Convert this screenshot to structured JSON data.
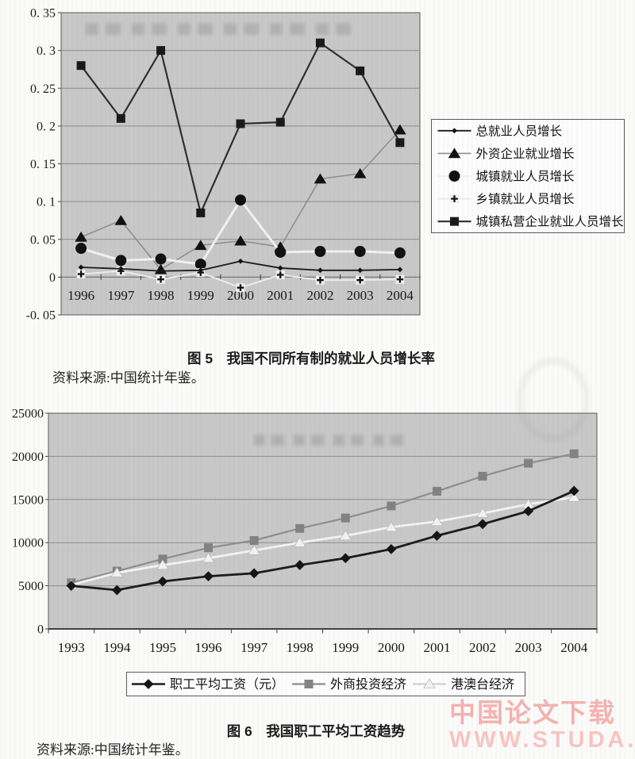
{
  "page": {
    "watermark": {
      "line1": "中国论文下载",
      "line2": "WWW.STUDA.",
      "color1": "#f5b3b0",
      "color2": "#f8c5c2"
    },
    "background": "#fbfbfa"
  },
  "figure5": {
    "caption": "图 5　我国不同所有制的就业人员增长率",
    "source": "资料来源:中国统计年鉴。"
  },
  "figure6": {
    "caption": "图 6　我国职工平均工资趋势",
    "source": "资料来源:中国统计年鉴。"
  },
  "chart_data": [
    {
      "type": "line",
      "title": "我国不同所有制的就业人员增长率",
      "xlabel": "",
      "ylabel": "",
      "categories": [
        "1996",
        "1997",
        "1998",
        "1999",
        "2000",
        "2001",
        "2002",
        "2003",
        "2004"
      ],
      "ylim": [
        -0.05,
        0.35
      ],
      "ytick_values": [
        0.35,
        0.3,
        0.25,
        0.2,
        0.15,
        0.1,
        0.05,
        0,
        -0.05
      ],
      "ytick_labels": [
        "0. 35",
        "0. 3",
        "0. 25",
        "0. 2",
        "0. 15",
        "0. 1",
        "0. 05",
        "0",
        "-0. 05"
      ],
      "grid": true,
      "plot_bg": "#c8c8c8",
      "legend_position": "right",
      "x_axis_at_zero": true,
      "draw_order": [
        1,
        4,
        2,
        3,
        0
      ],
      "series": [
        {
          "name": "总就业人员增长",
          "marker": "diamond-small",
          "line_color": "#1a1a1a",
          "line_width": 1.8,
          "values": [
            0.013,
            0.011,
            0.008,
            0.009,
            0.021,
            0.012,
            0.009,
            0.009,
            0.01
          ]
        },
        {
          "name": "外资企业就业增长",
          "marker": "triangle",
          "line_color": "#8f8f8f",
          "line_width": 1.6,
          "values": [
            0.053,
            0.075,
            0.01,
            0.042,
            0.048,
            0.04,
            0.13,
            0.137,
            0.195
          ]
        },
        {
          "name": "城镇就业人员增长",
          "marker": "circle",
          "line_color": "#f2f2f2",
          "line_width": 3,
          "values": [
            0.038,
            0.022,
            0.024,
            0.017,
            0.102,
            0.033,
            0.034,
            0.034,
            0.032
          ]
        },
        {
          "name": "乡镇就业人员增长",
          "marker": "plus",
          "line_color": "#ededed",
          "line_width": 2,
          "values": [
            0.004,
            0.008,
            -0.003,
            0.006,
            -0.014,
            0.003,
            -0.004,
            -0.004,
            -0.003
          ]
        },
        {
          "name": "城镇私营企业就业人员增长",
          "marker": "square",
          "line_color": "#2e2e2e",
          "line_width": 2.2,
          "values": [
            0.28,
            0.21,
            0.3,
            0.085,
            0.203,
            0.205,
            0.31,
            0.273,
            0.178
          ]
        }
      ]
    },
    {
      "type": "line",
      "title": "我国职工平均工资趋势",
      "xlabel": "",
      "ylabel": "",
      "categories": [
        "1993",
        "1994",
        "1995",
        "1996",
        "1997",
        "1998",
        "1999",
        "2000",
        "2001",
        "2002",
        "2003",
        "2004"
      ],
      "ylim": [
        0,
        25000
      ],
      "ytick_values": [
        25000,
        20000,
        15000,
        10000,
        5000,
        0
      ],
      "ytick_labels": [
        "25000",
        "20000",
        "15000",
        "10000",
        "5000",
        "0"
      ],
      "grid": true,
      "plot_bg": "#c8c8c8",
      "legend_position": "bottom",
      "x_axis_at_zero": false,
      "draw_order": [
        1,
        2,
        0
      ],
      "series": [
        {
          "name": "职工平均工资（元）",
          "marker": "diamond",
          "line_color": "#1b1b1b",
          "line_width": 2.8,
          "values": [
            5000,
            4500,
            5500,
            6100,
            6450,
            7400,
            8200,
            9250,
            10800,
            12150,
            13650,
            16000
          ]
        },
        {
          "name": "外商投资经济",
          "marker": "square-gray",
          "line_color": "#8e8e8e",
          "line_width": 2.2,
          "values": [
            5350,
            6700,
            8100,
            9400,
            10250,
            11650,
            12850,
            14250,
            15950,
            17700,
            19200,
            20300
          ]
        },
        {
          "name": "港澳台经济",
          "marker": "triangle-light",
          "line_color": "#f4f4f4",
          "legend_line_color": "#d5d5d5",
          "line_width": 2.8,
          "values": [
            5100,
            6500,
            7400,
            8200,
            9100,
            10000,
            10800,
            11800,
            12450,
            13400,
            14450,
            15250
          ]
        }
      ]
    }
  ]
}
